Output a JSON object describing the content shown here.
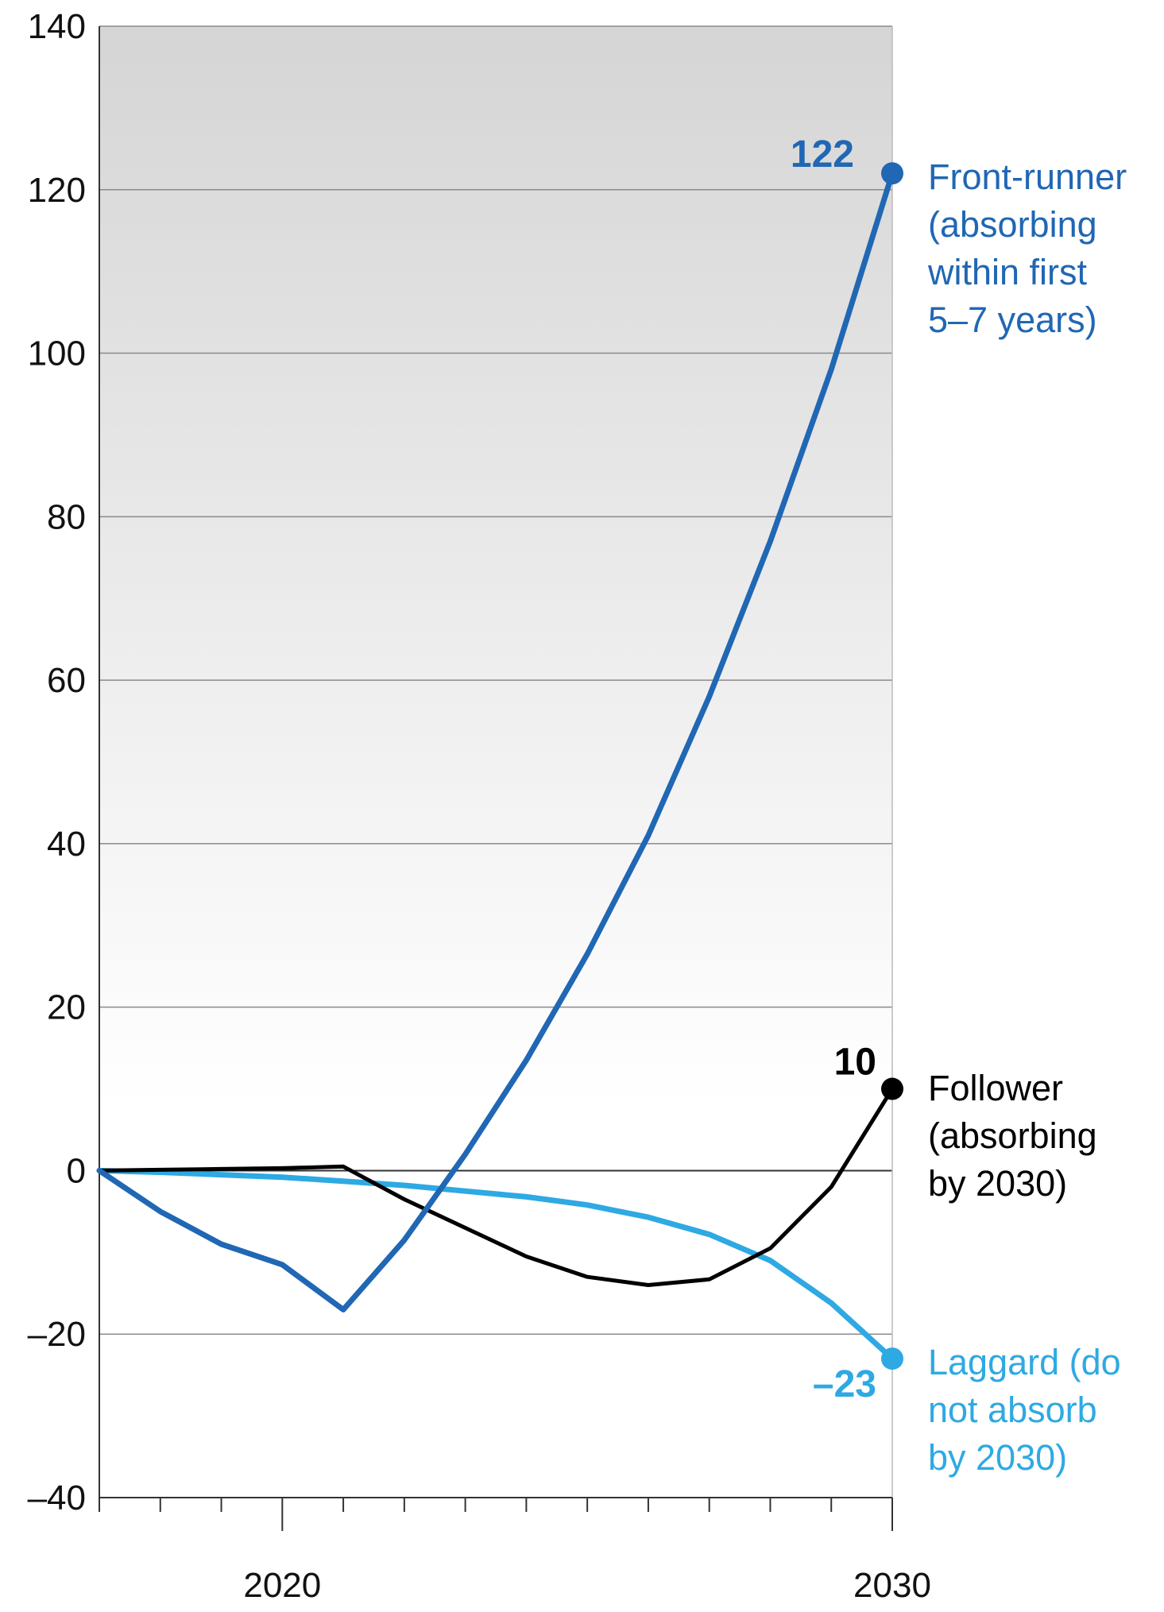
{
  "chart_data": {
    "type": "line",
    "title": "",
    "xlabel": "",
    "ylabel": "",
    "xlim": [
      2017,
      2030
    ],
    "ylim": [
      -40,
      140
    ],
    "y_ticks": [
      -40,
      -20,
      0,
      20,
      40,
      60,
      80,
      100,
      120,
      140
    ],
    "y_tick_labels": [
      "–40",
      "–20",
      "0",
      "20",
      "40",
      "60",
      "80",
      "100",
      "120",
      "140"
    ],
    "x_ticks": [
      2017,
      2018,
      2019,
      2020,
      2021,
      2022,
      2023,
      2024,
      2025,
      2026,
      2027,
      2028,
      2029,
      2030
    ],
    "x_tick_labels": [
      {
        "value": 2020,
        "label": "2020"
      },
      {
        "value": 2030,
        "label": "2030"
      }
    ],
    "grid": true,
    "background": "gradient from gray at top to white near zero",
    "series": [
      {
        "name": "Front-runner (absorbing within first 5–7 years)",
        "label_lines": [
          "Front-runner",
          "(absorbing",
          "within first",
          "5–7 years)"
        ],
        "color": "#2067b4",
        "end_label": "122",
        "x": [
          2017,
          2018,
          2019,
          2020,
          2021,
          2022,
          2023,
          2024,
          2025,
          2026,
          2027,
          2028,
          2029,
          2030
        ],
        "y": [
          0,
          -5,
          -9,
          -11.5,
          -17,
          -8.5,
          2,
          13.5,
          26.5,
          41,
          58,
          77,
          98,
          122
        ]
      },
      {
        "name": "Follower (absorbing by 2030)",
        "label_lines": [
          "Follower",
          "(absorbing",
          "by 2030)"
        ],
        "color": "#000000",
        "end_label": "10",
        "x": [
          2017,
          2018,
          2019,
          2020,
          2021,
          2022,
          2023,
          2024,
          2025,
          2026,
          2027,
          2028,
          2029,
          2030
        ],
        "y": [
          0,
          0.1,
          0.2,
          0.3,
          0.5,
          -3.5,
          -7,
          -10.5,
          -13,
          -14,
          -13.3,
          -9.5,
          -2,
          10
        ]
      },
      {
        "name": "Laggard (do not absorb by 2030)",
        "label_lines": [
          "Laggard (do",
          "not absorb",
          "by 2030)"
        ],
        "color": "#2ea9e3",
        "end_label": "–23",
        "x": [
          2017,
          2018,
          2019,
          2020,
          2021,
          2022,
          2023,
          2024,
          2025,
          2026,
          2027,
          2028,
          2029,
          2030
        ],
        "y": [
          0,
          -0.2,
          -0.5,
          -0.8,
          -1.3,
          -1.8,
          -2.5,
          -3.2,
          -4.2,
          -5.7,
          -7.8,
          -11,
          -16.2,
          -23
        ]
      }
    ]
  }
}
